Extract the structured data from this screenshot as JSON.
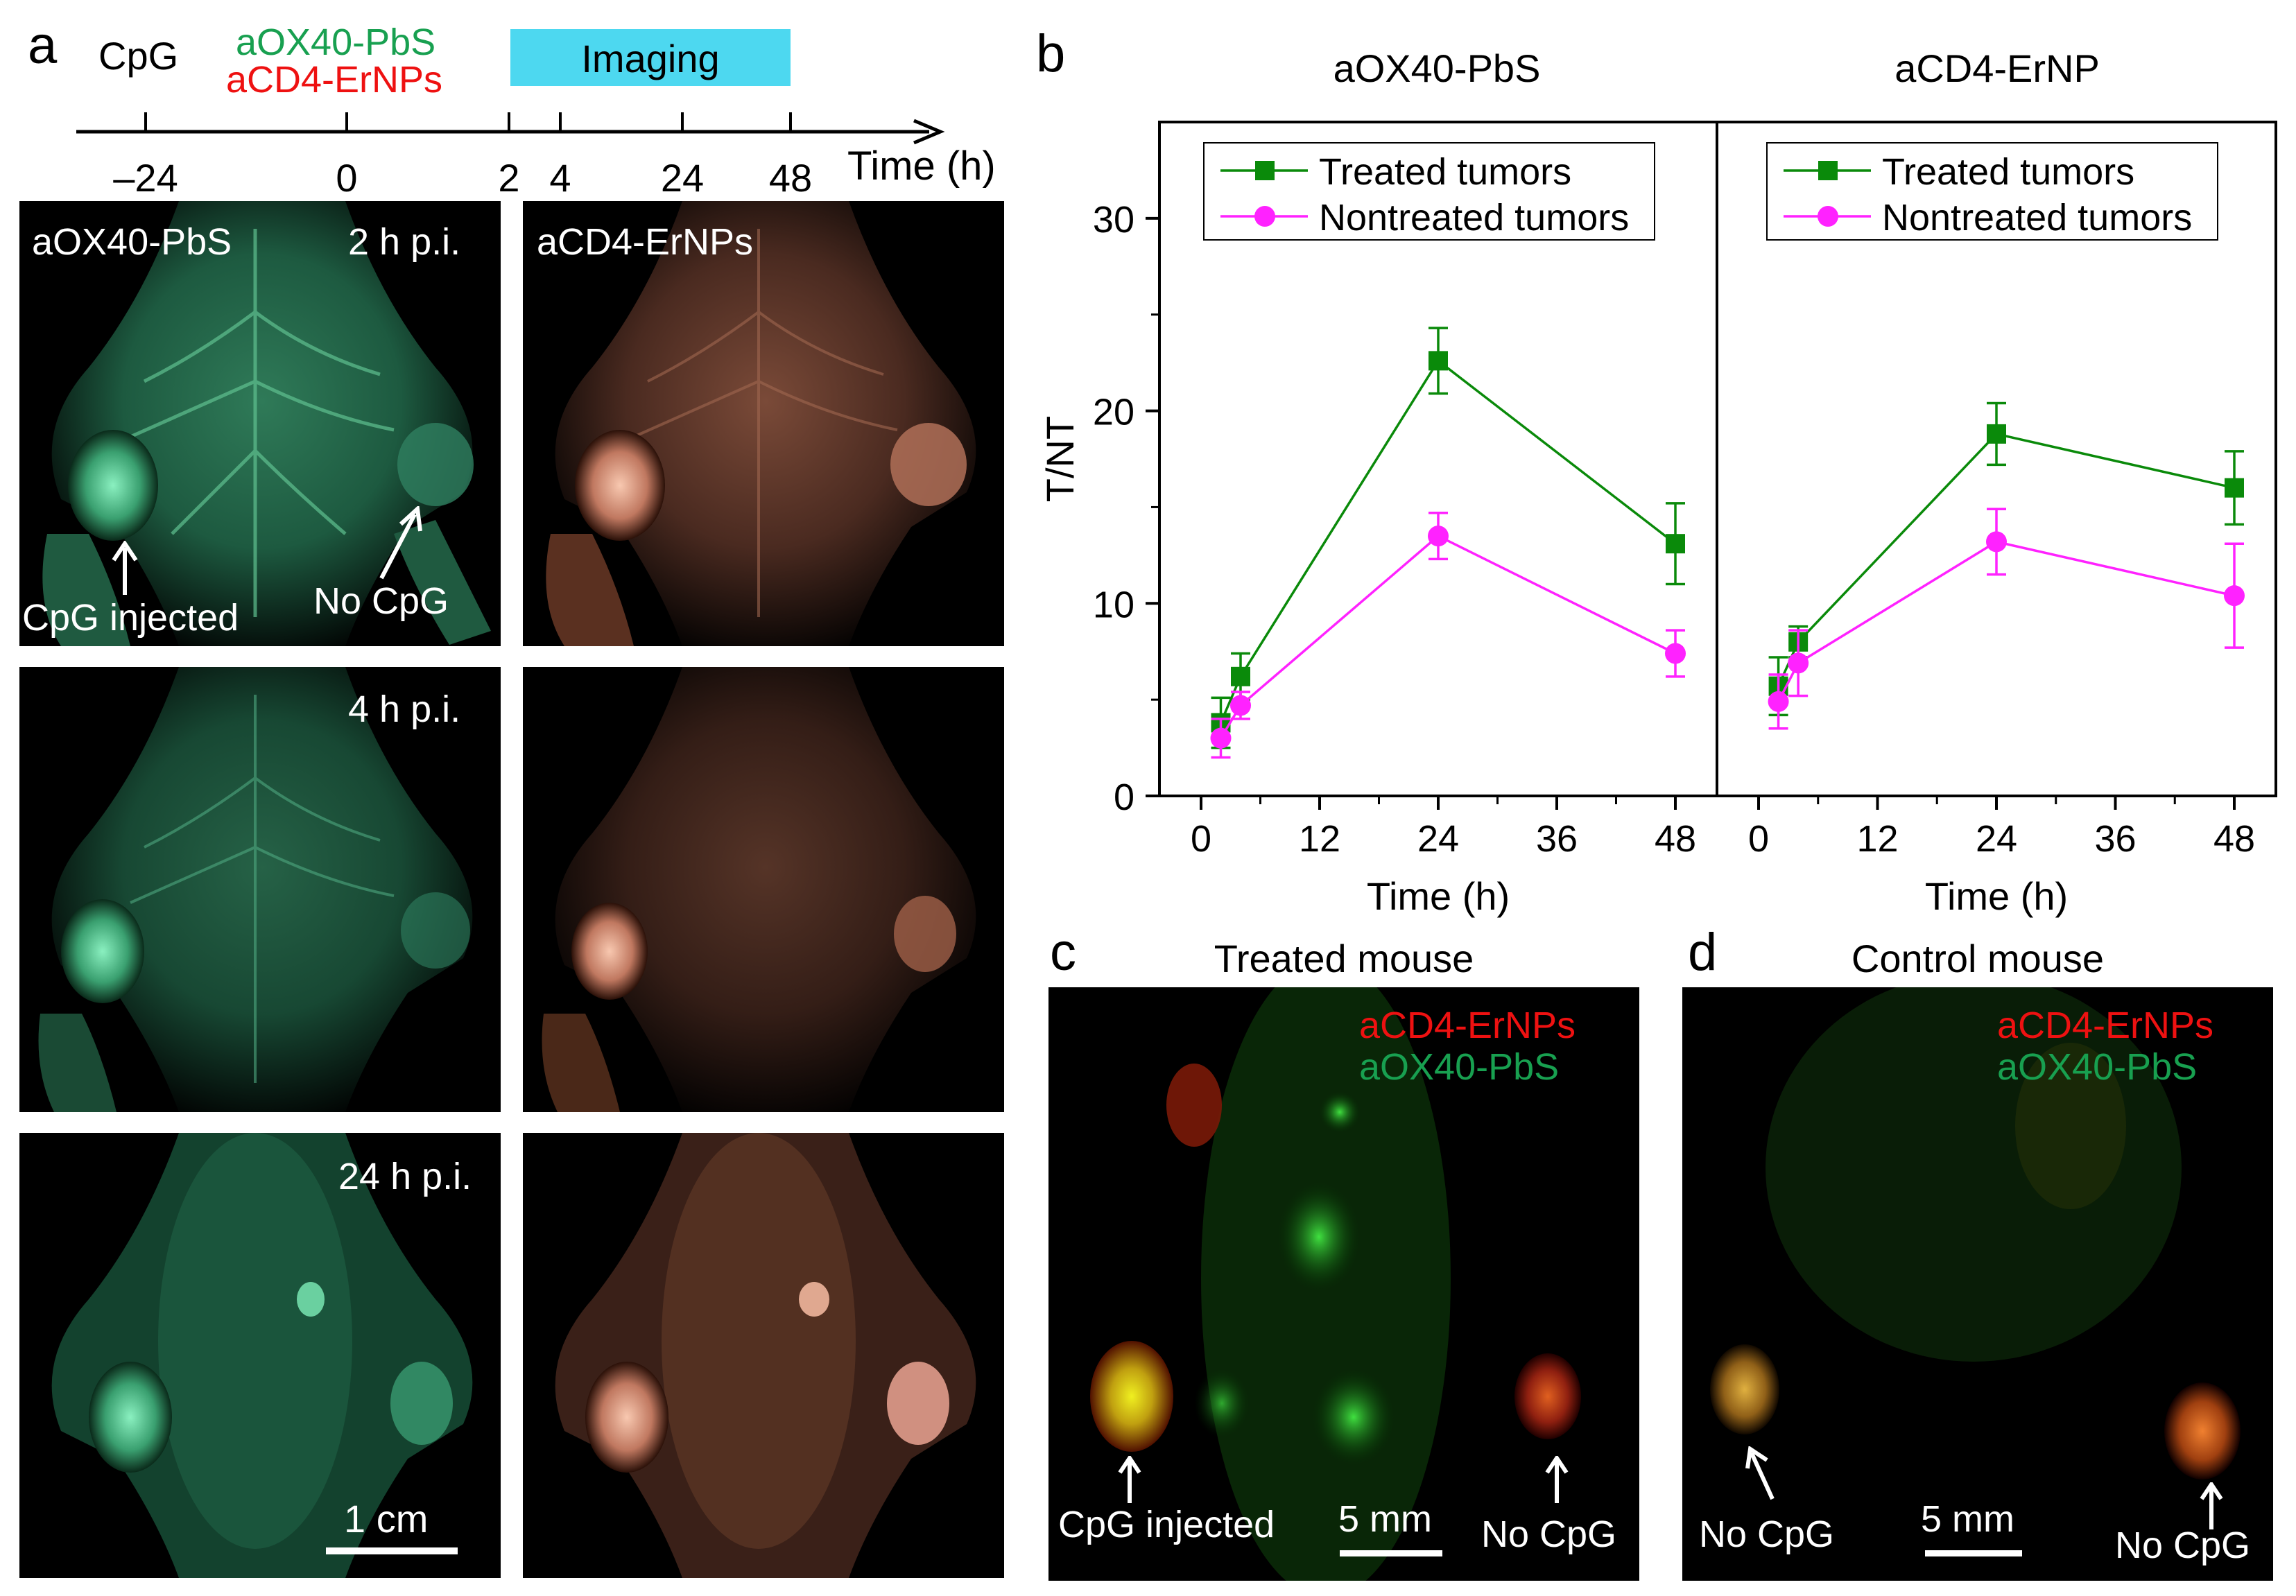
{
  "panel_a": {
    "letter": "a",
    "timeline": {
      "cpg_label": "CpG",
      "probe1_label": "aOX40-PbS",
      "probe2_label": "aCD4-ErNPs",
      "imaging_label": "Imaging",
      "ticks": [
        {
          "t": -24,
          "label": "–24"
        },
        {
          "t": 0,
          "label": "0"
        },
        {
          "t": 2,
          "label": "2"
        },
        {
          "t": 4,
          "label": "4"
        },
        {
          "t": 24,
          "label": "24"
        },
        {
          "t": 48,
          "label": "48"
        }
      ],
      "axis_label": "Time (h)",
      "imaging_window": [
        2,
        48
      ]
    },
    "images": {
      "col1_title": "aOX40-PbS",
      "col2_title": "aCD4-ErNPs",
      "row_labels": [
        "2 h p.i.",
        "4 h p.i.",
        "24 h p.i."
      ],
      "arrow_left": "CpG injected",
      "arrow_right": "No CpG",
      "scale_bar": "1 cm"
    }
  },
  "panel_b": {
    "letter": "b",
    "ylabel": "T/NT",
    "xlabel": "Time (h)"
  },
  "panel_c": {
    "letter": "c",
    "title": "Treated mouse",
    "legend_red": "aCD4-ErNPs",
    "legend_green": "aOX40-PbS",
    "left_label": "CpG injected",
    "right_label": "No CpG",
    "scale_bar": "5 mm"
  },
  "panel_d": {
    "letter": "d",
    "title": "Control mouse",
    "legend_red": "aCD4-ErNPs",
    "legend_green": "aOX40-PbS",
    "left_label": "No CpG",
    "right_label": "No CpG",
    "scale_bar": "5 mm"
  },
  "colors": {
    "treated": "#0a8a0a",
    "nontreated": "#ff22ff",
    "probe_green": "#18a050",
    "probe_red": "#ee1111",
    "imaging_bar": "#4dd8f0"
  },
  "chart_data": [
    {
      "type": "line",
      "title": "aOX40-PbS",
      "xlabel": "Time (h)",
      "ylabel": "T/NT",
      "xlim": [
        -3,
        54
      ],
      "ylim": [
        0,
        35
      ],
      "xticks": [
        0,
        12,
        24,
        36,
        48
      ],
      "yticks": [
        0,
        10,
        20,
        30
      ],
      "legend_position": "top",
      "series": [
        {
          "name": "Treated tumors",
          "x": [
            2,
            4,
            24,
            48
          ],
          "y": [
            3.8,
            6.2,
            22.6,
            13.1
          ],
          "err": [
            1.3,
            1.2,
            1.7,
            2.1
          ]
        },
        {
          "name": "Nontreated tumors",
          "x": [
            2,
            4,
            24,
            48
          ],
          "y": [
            3.0,
            4.7,
            13.5,
            7.4
          ],
          "err": [
            1.0,
            0.7,
            1.2,
            1.2
          ]
        }
      ]
    },
    {
      "type": "line",
      "title": "aCD4-ErNP",
      "xlabel": "Time (h)",
      "ylabel": "",
      "xlim": [
        -3,
        54
      ],
      "ylim": [
        0,
        35
      ],
      "xticks": [
        0,
        12,
        24,
        36,
        48
      ],
      "yticks": [
        0,
        10,
        20,
        30
      ],
      "legend_position": "top",
      "series": [
        {
          "name": "Treated tumors",
          "x": [
            2,
            4,
            24,
            48
          ],
          "y": [
            5.7,
            8.0,
            18.8,
            16.0
          ],
          "err": [
            1.5,
            0.8,
            1.6,
            1.9
          ]
        },
        {
          "name": "Nontreated tumors",
          "x": [
            2,
            4,
            24,
            48
          ],
          "y": [
            4.9,
            6.9,
            13.2,
            10.4
          ],
          "err": [
            1.4,
            1.7,
            1.7,
            2.7
          ]
        }
      ]
    }
  ]
}
